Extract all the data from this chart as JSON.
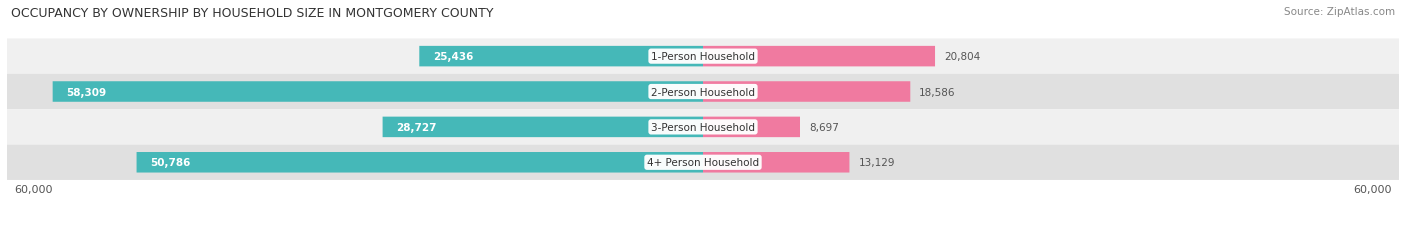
{
  "title": "OCCUPANCY BY OWNERSHIP BY HOUSEHOLD SIZE IN MONTGOMERY COUNTY",
  "source": "Source: ZipAtlas.com",
  "categories": [
    "1-Person Household",
    "2-Person Household",
    "3-Person Household",
    "4+ Person Household"
  ],
  "owner_values": [
    25436,
    58309,
    28727,
    50786
  ],
  "renter_values": [
    20804,
    18586,
    8697,
    13129
  ],
  "owner_color": "#45B8B8",
  "renter_color": "#F07AA0",
  "row_bg_colors": [
    "#F0F0F0",
    "#E0E0E0",
    "#F0F0F0",
    "#E0E0E0"
  ],
  "max_val": 60000,
  "title_fontsize": 9.0,
  "source_fontsize": 7.5,
  "bar_height": 0.58,
  "label_fontsize": 7.5,
  "category_fontsize": 7.5,
  "inside_label_threshold": 12000
}
